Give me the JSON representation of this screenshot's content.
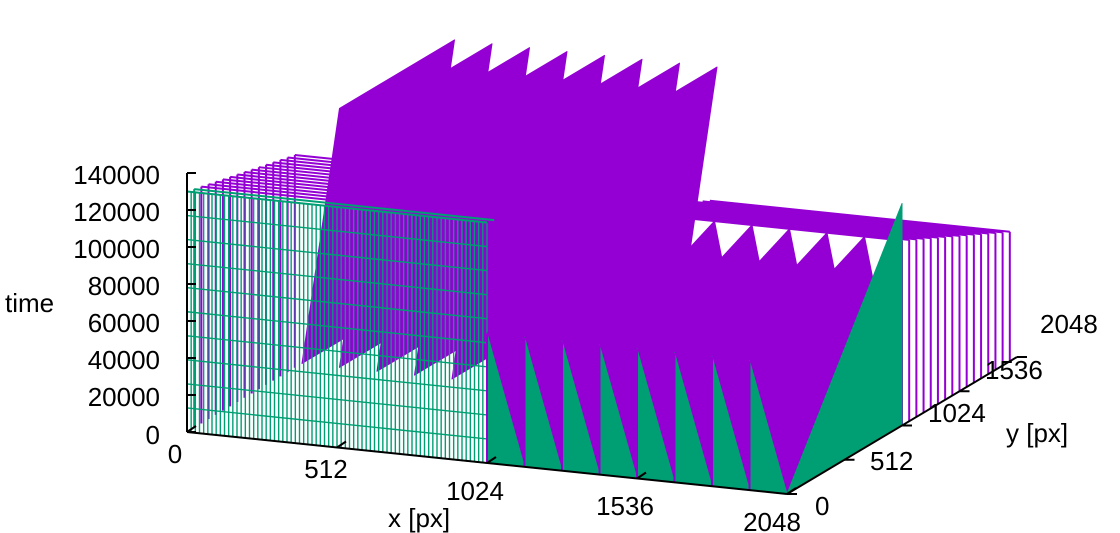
{
  "chart_data": {
    "type": "surface3d",
    "title": "",
    "xlabel": "x [px]",
    "ylabel": "y [px]",
    "zlabel": "time",
    "x_ticks": [
      "0",
      "512",
      "1024",
      "1536",
      "2048"
    ],
    "y_ticks": [
      "0",
      "512",
      "1024",
      "1536",
      "2048"
    ],
    "z_ticks": [
      "0",
      "20000",
      "40000",
      "60000",
      "80000",
      "100000",
      "120000",
      "140000"
    ],
    "xlim": [
      0,
      2048
    ],
    "ylim": [
      0,
      2048
    ],
    "zlim": [
      0,
      140000
    ],
    "colors": {
      "front": "#009e73",
      "back": "#9400d3"
    },
    "blocks": [
      {
        "region": "x 0-1024, y 0-1024",
        "pattern": "time increases along y in rows; wireframe rows, back (purple) peaking near 130000"
      },
      {
        "region": "x 1024-2048, y 0-1024",
        "pattern": "time increases along x; sawtooth columns from 0 to ~70000"
      },
      {
        "region": "x 0-1024, y 1024-2048",
        "pattern": "sawtooth ridges along x from 0 to ~140000"
      },
      {
        "region": "x 1024-2048, y 1024-2048",
        "pattern": "wireframe rows, up to ~100000"
      }
    ]
  }
}
